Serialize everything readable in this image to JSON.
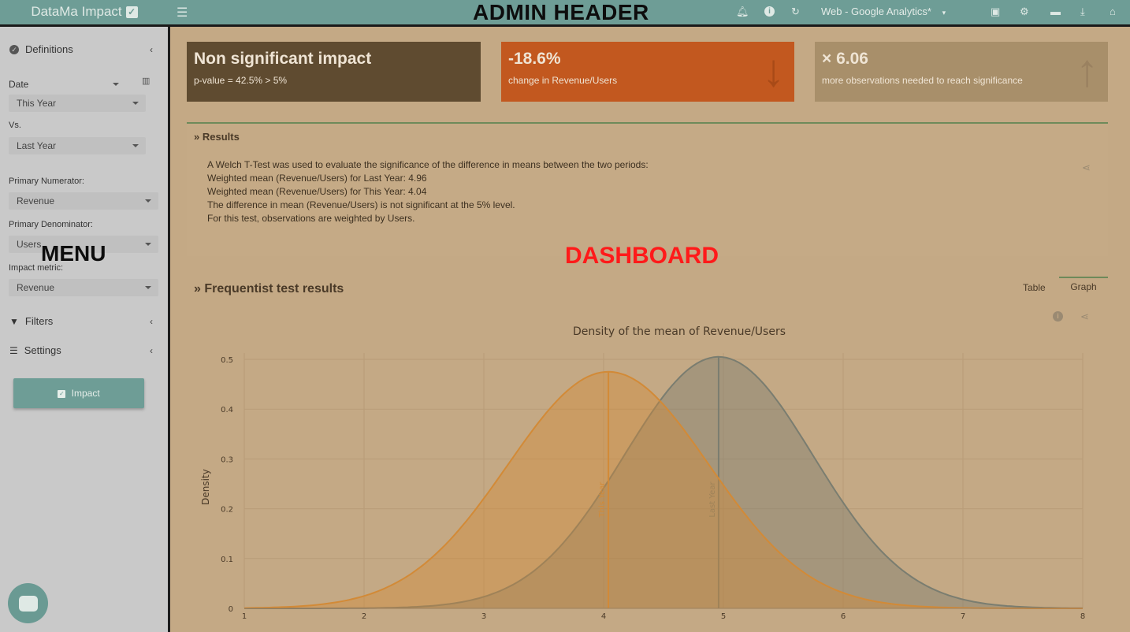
{
  "header": {
    "brand": "DataMa Impact",
    "overlay_title": "ADMIN HEADER",
    "data_source": "Web - Google Analytics*",
    "icons": [
      "menu-icon",
      "bell-icon",
      "info-icon",
      "refresh-icon",
      "save-icon",
      "settings-icon",
      "folder-icon",
      "download-icon",
      "home-icon"
    ]
  },
  "sidebar": {
    "definitions": "Definitions",
    "date_label": "Date",
    "date_value": "This Year",
    "vs_label": "Vs.",
    "vs_value": "Last Year",
    "numerator_label": "Primary Numerator:",
    "numerator_value": "Revenue",
    "denominator_label": "Primary Denominator:",
    "denominator_value": "Users",
    "impact_label": "Impact metric:",
    "impact_value": "Revenue",
    "filters": "Filters",
    "settings": "Settings",
    "impact_button": "Impact",
    "overlay_label": "MENU"
  },
  "stats": [
    {
      "big": "Non significant impact",
      "small": "p-value = 42.5% > 5%",
      "color": "#5f4b30"
    },
    {
      "big": "-18.6%",
      "small": "change in Revenue/Users",
      "color": "#c2581f"
    },
    {
      "big": "× 6.06",
      "small": "more observations needed to reach significance",
      "color": "#a88f6a"
    }
  ],
  "results": {
    "title": "Results",
    "lines": [
      "A Welch T-Test was used to evaluate the significance of the difference in means between the two periods:",
      "Weighted mean (Revenue/Users) for Last Year: 4.96",
      "Weighted mean (Revenue/Users) for This Year: 4.04",
      "The difference in mean (Revenue/Users) is not significant at the 5% level.",
      "For this test, observations are weighted by Users."
    ]
  },
  "dashboard_overlay": "DASHBOARD",
  "freq": {
    "title": "Frequentist test results",
    "tab_table": "Table",
    "tab_graph": "Graph"
  },
  "chart_data": {
    "type": "area",
    "title": "Density of the mean of Revenue/Users",
    "xlabel": "",
    "ylabel": "Density",
    "xlim": [
      1,
      8
    ],
    "ylim": [
      0,
      0.5
    ],
    "x_ticks": [
      1,
      2,
      3,
      4,
      5,
      6,
      7,
      8
    ],
    "y_ticks": [
      0,
      0.1,
      0.2,
      0.3,
      0.4,
      0.5
    ],
    "grid": true,
    "series": [
      {
        "name": "This Year",
        "mean": 4.04,
        "sd": 0.84,
        "peak": 0.475,
        "color": "#d28a37"
      },
      {
        "name": "Last Year",
        "mean": 4.96,
        "sd": 0.79,
        "peak": 0.505,
        "color": "#7a7d70"
      }
    ]
  },
  "colors": {
    "header": "#6e9d96",
    "sidebar": "#c9c9c9",
    "dashboard_bg": "#c4a985"
  }
}
